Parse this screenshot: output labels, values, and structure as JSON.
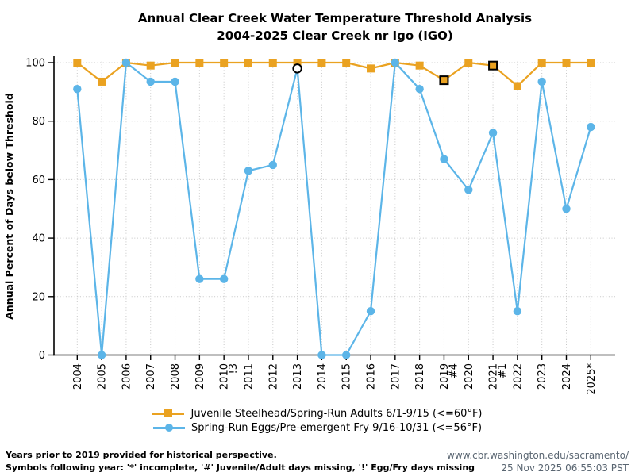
{
  "title": {
    "line1": "Annual Clear Creek Water Temperature Threshold Analysis",
    "line2": "2004-2025 Clear Creek nr Igo (IGO)"
  },
  "chart_data": {
    "type": "line",
    "title": "Annual Clear Creek Water Temperature Threshold Analysis 2004-2025 Clear Creek nr Igo (IGO)",
    "ylabel": "Annual Percent of Days below Threshold",
    "xlabel": "",
    "ylim": [
      0,
      100
    ],
    "yticks": [
      0,
      20,
      40,
      60,
      80,
      100
    ],
    "grid": "dotted",
    "legend_position": "bottom",
    "x_labels": [
      {
        "year": "2004",
        "note": ""
      },
      {
        "year": "2005",
        "note": ""
      },
      {
        "year": "2006",
        "note": ""
      },
      {
        "year": "2007",
        "note": ""
      },
      {
        "year": "2008",
        "note": ""
      },
      {
        "year": "2009",
        "note": ""
      },
      {
        "year": "2010",
        "note": "!3"
      },
      {
        "year": "2011",
        "note": ""
      },
      {
        "year": "2012",
        "note": ""
      },
      {
        "year": "2013",
        "note": ""
      },
      {
        "year": "2014",
        "note": ""
      },
      {
        "year": "2015",
        "note": ""
      },
      {
        "year": "2016",
        "note": ""
      },
      {
        "year": "2017",
        "note": ""
      },
      {
        "year": "2018",
        "note": ""
      },
      {
        "year": "2019",
        "note": "#4"
      },
      {
        "year": "2020",
        "note": ""
      },
      {
        "year": "2021",
        "note": "#1"
      },
      {
        "year": "2022",
        "note": ""
      },
      {
        "year": "2023",
        "note": ""
      },
      {
        "year": "2024",
        "note": ""
      },
      {
        "year": "2025*",
        "note": ""
      }
    ],
    "series": [
      {
        "name": "Juvenile Steelhead/Spring-Run Adults 6/1-9/15 (<=60°F)",
        "marker": "square",
        "color": "#EAA221",
        "values": [
          100,
          93.5,
          100,
          99,
          100,
          100,
          100,
          100,
          100,
          100,
          100,
          100,
          98,
          100,
          99,
          94,
          100,
          99,
          92,
          100,
          100,
          100
        ],
        "outlined_points": [
          15,
          17
        ],
        "outlined_fill": "#EAA221"
      },
      {
        "name": "Spring-Run Eggs/Pre-emergent Fry 9/16-10/31 (<=56°F)",
        "marker": "circle",
        "color": "#5CB5E8",
        "values": [
          91,
          0,
          100,
          93.5,
          93.5,
          26,
          26,
          63,
          65,
          98,
          0,
          0,
          15,
          100,
          91,
          67,
          56.5,
          76,
          15,
          93.5,
          50,
          78
        ],
        "outlined_points": [
          9
        ],
        "outlined_fill": "#ffffff"
      }
    ]
  },
  "footer": {
    "left_line1": "Years prior to 2019 provided for historical perspective.",
    "left_line2": "Symbols following year: '*' incomplete, '#' Juvenile/Adult days missing, '!' Egg/Fry days missing",
    "right_line1": "www.cbr.washington.edu/sacramento/",
    "right_line2": "25 Nov 2025 06:55:03 PST"
  }
}
